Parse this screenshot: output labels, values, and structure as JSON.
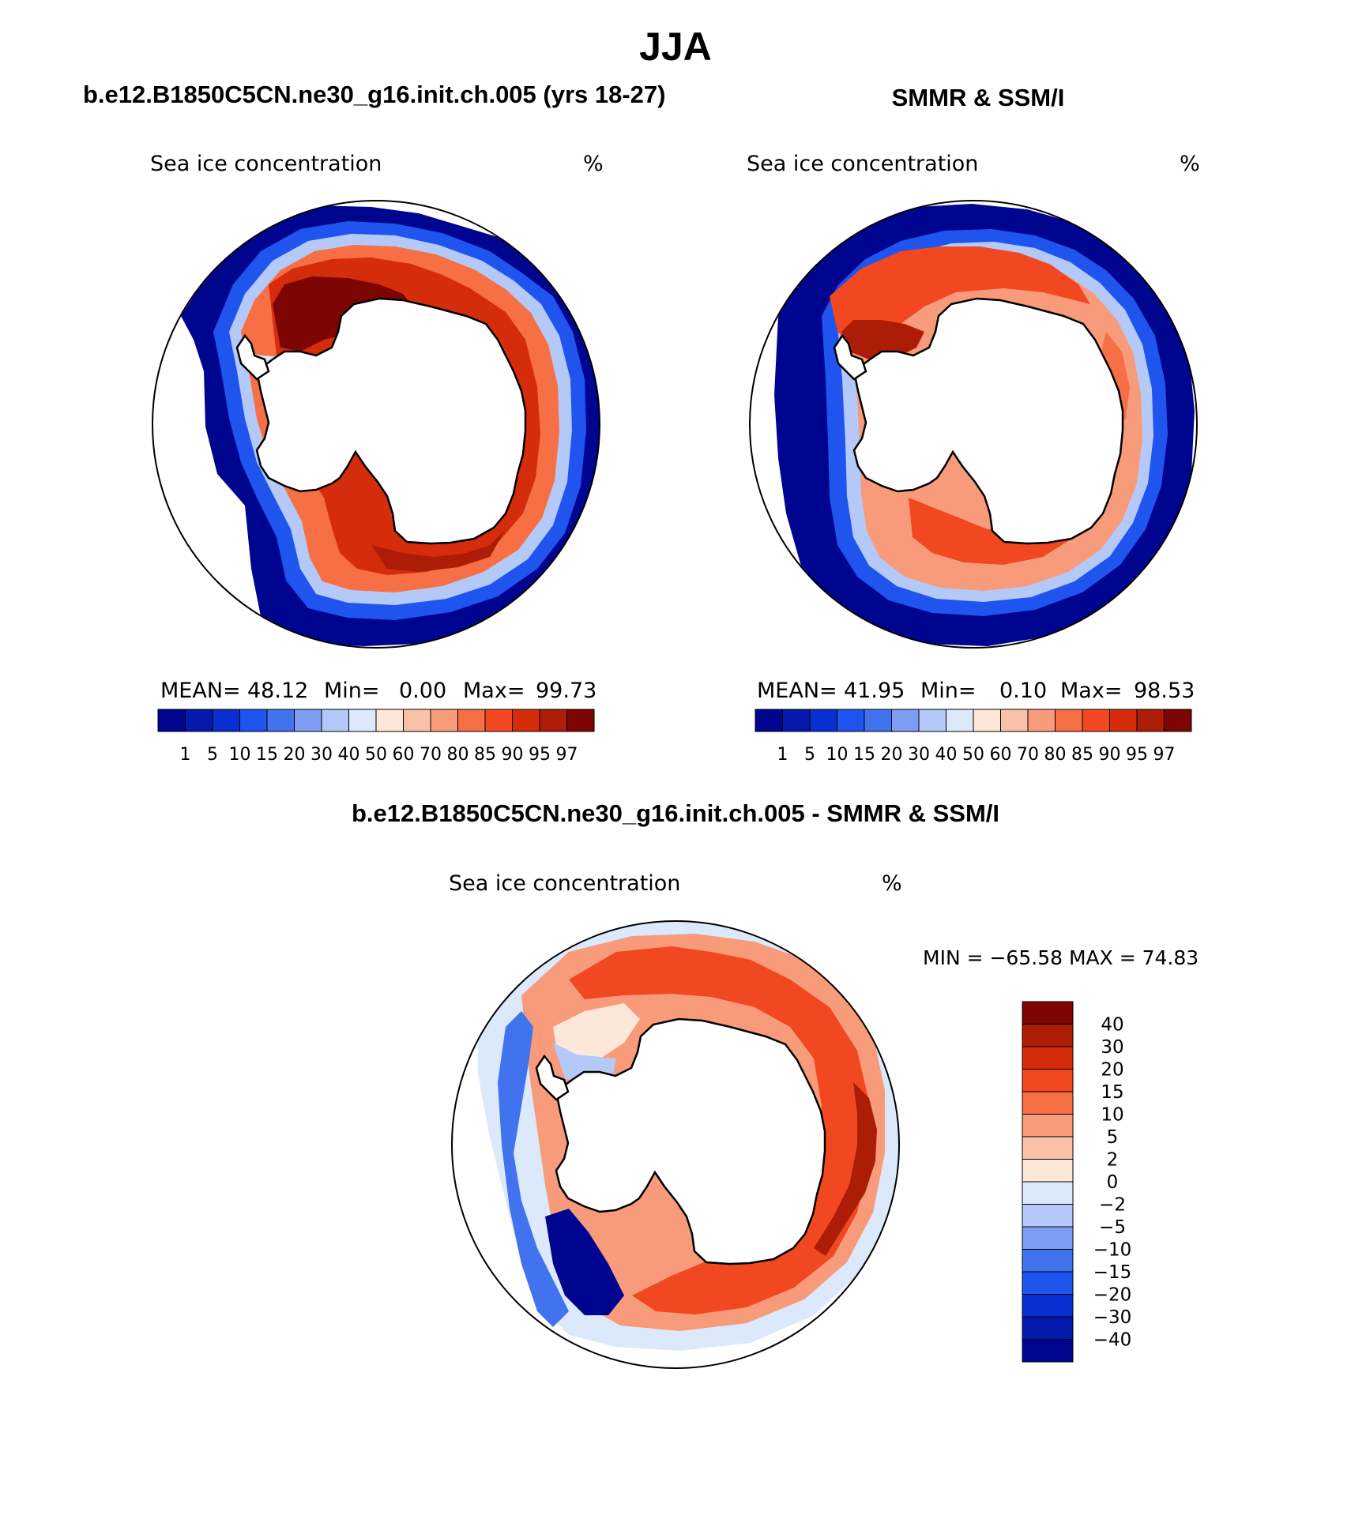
{
  "title": "JJA",
  "panels": {
    "left": {
      "title": "b.e12.B1850C5CN.ne30_g16.init.ch.005 (yrs 18-27)",
      "variable": "Sea ice concentration",
      "units": "%",
      "stats": {
        "mean_label": "MEAN=",
        "mean": "48.12",
        "min_label": "Min=",
        "min": "0.00",
        "max_label": "Max=",
        "max": "99.73"
      }
    },
    "right": {
      "title": "SMMR & SSM/I",
      "variable": "Sea ice concentration",
      "units": "%",
      "stats": {
        "mean_label": "MEAN=",
        "mean": "41.95",
        "min_label": "Min=",
        "min": "0.10",
        "max_label": "Max=",
        "max": "98.53"
      }
    },
    "diff": {
      "title": "b.e12.B1850C5CN.ne30_g16.init.ch.005 - SMMR & SSM/I",
      "variable": "Sea ice concentration",
      "units": "%",
      "minmax": "MIN = −65.58  MAX =   74.83"
    }
  },
  "colorbar_abs": {
    "levels": [
      "1",
      "5",
      "10",
      "15",
      "20",
      "30",
      "40",
      "50",
      "60",
      "70",
      "80",
      "85",
      "90",
      "95",
      "97"
    ],
    "colors": [
      "#00058f",
      "#0519ad",
      "#0a2fd0",
      "#1f54ee",
      "#4273ef",
      "#7e9df2",
      "#b4c9f7",
      "#dce8fb",
      "#fde7d8",
      "#f9c2a8",
      "#f79b7a",
      "#f76f44",
      "#f14822",
      "#d52d0c",
      "#ad1c06",
      "#7d0503"
    ]
  },
  "colorbar_diff": {
    "levels": [
      "−40",
      "−30",
      "−20",
      "−15",
      "−10",
      "−5",
      "−2",
      "0",
      "2",
      "5",
      "10",
      "15",
      "20",
      "30",
      "40"
    ],
    "colors": [
      "#00058f",
      "#0519ad",
      "#0a2fd0",
      "#1f54ee",
      "#4273ef",
      "#7e9df2",
      "#b4c9f7",
      "#dce8fb",
      "#fde7d8",
      "#f9c2a8",
      "#f79b7a",
      "#f76f44",
      "#f14822",
      "#d52d0c",
      "#ad1c06",
      "#7d0503"
    ]
  }
}
